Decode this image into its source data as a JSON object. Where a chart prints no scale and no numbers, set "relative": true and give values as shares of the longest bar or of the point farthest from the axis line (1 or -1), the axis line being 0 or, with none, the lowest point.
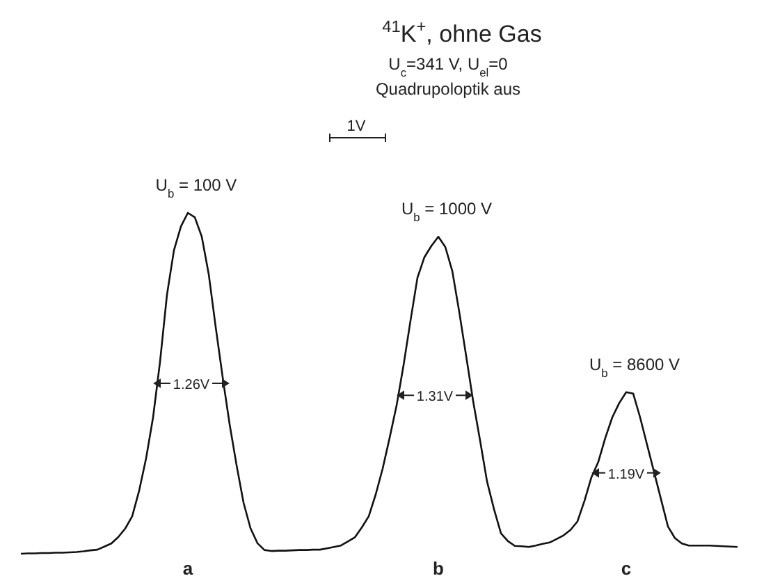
{
  "chart_data": {
    "type": "line",
    "relative": true,
    "title": "$^{41}$K$^{+}$, ohne Gas",
    "subtitle": "U$_{c}$=341 V, U$_{el}$=0",
    "line_style": "solid",
    "categories": [
      null,
      null,
      null,
      null,
      null,
      null,
      null,
      null,
      null,
      null,
      null,
      null,
      null,
      null,
      null,
      null,
      null,
      null,
      null,
      null,
      null,
      null,
      null,
      null,
      null,
      null,
      null,
      null,
      null,
      null,
      null,
      null,
      null,
      null,
      null,
      null,
      null,
      null,
      null,
      null,
      null,
      null,
      null,
      null,
      null,
      null,
      null,
      null,
      null,
      null,
      null,
      null,
      null,
      null,
      null,
      null,
      null,
      null,
      null,
      null,
      null,
      null,
      null,
      null,
      null,
      null,
      null,
      null,
      null,
      null,
      null,
      null,
      null,
      null,
      null,
      null,
      null,
      null,
      null,
      null,
      null,
      null,
      null,
      null,
      null,
      null,
      null,
      null,
      null,
      null,
      null,
      null,
      null,
      null,
      null,
      null,
      null,
      null,
      null,
      null,
      null,
      null,
      null,
      null
    ],
    "series": [
      {
        "color": "#111111",
        "values": [
          0,
          0.001,
          0.001,
          0.002,
          0.002,
          0.003,
          0.003,
          0.004,
          0.005,
          0.007,
          0.01,
          0.012,
          0.021,
          0.03,
          0.049,
          0.074,
          0.11,
          0.185,
          0.28,
          0.4,
          0.563,
          0.76,
          0.89,
          0.96,
          1,
          0.987,
          0.93,
          0.82,
          0.665,
          0.518,
          0.38,
          0.26,
          0.15,
          0.075,
          0.031,
          0.011,
          0.008,
          0.009,
          0.009,
          0.01,
          0.011,
          0.011,
          0.012,
          0.012,
          0.016,
          0.02,
          0.024,
          0.036,
          0.048,
          0.077,
          0.11,
          0.174,
          0.25,
          0.34,
          0.435,
          0.553,
          0.684,
          0.81,
          0.87,
          0.903,
          0.93,
          0.9,
          0.83,
          0.71,
          0.58,
          0.448,
          0.332,
          0.212,
          0.131,
          0.06,
          0.037,
          0.023,
          0.022,
          0.02,
          0.024,
          0.029,
          0.033,
          0.043,
          0.054,
          0.07,
          0.095,
          0.155,
          0.224,
          0.27,
          0.34,
          0.4,
          0.442,
          0.474,
          0.47,
          0.4,
          0.32,
          0.24,
          0.16,
          0.08,
          0.046,
          0.03,
          0.024,
          0.024,
          0.024,
          0.024,
          0.023,
          0.022,
          0.021,
          0.02
        ]
      }
    ],
    "annotations": [
      "Quadrupoloptik aus",
      "1V",
      "U$_{b}$ = 100 V",
      "U$_{b}$ = 1000 V",
      "U$_{b}$ = 8600 V",
      "1.26V",
      "1.31V",
      "1.19V",
      "a",
      "b",
      "c"
    ]
  }
}
